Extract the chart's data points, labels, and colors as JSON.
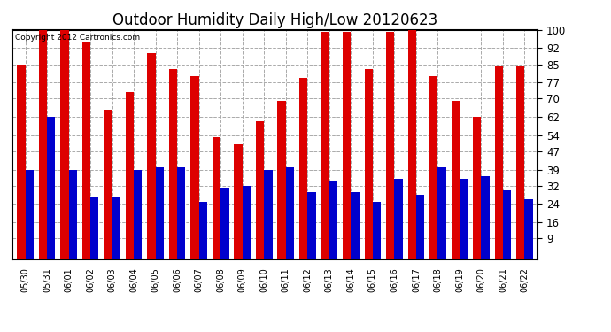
{
  "title": "Outdoor Humidity Daily High/Low 20120623",
  "copyright": "Copyright 2012 Cartronics.com",
  "dates": [
    "05/30",
    "05/31",
    "06/01",
    "06/02",
    "06/03",
    "06/04",
    "06/05",
    "06/06",
    "06/07",
    "06/08",
    "06/09",
    "06/10",
    "06/11",
    "06/12",
    "06/13",
    "06/14",
    "06/15",
    "06/16",
    "06/17",
    "06/18",
    "06/19",
    "06/20",
    "06/21",
    "06/22"
  ],
  "highs": [
    85,
    100,
    100,
    95,
    65,
    73,
    90,
    83,
    80,
    53,
    50,
    60,
    69,
    79,
    99,
    99,
    83,
    99,
    100,
    80,
    69,
    62,
    84,
    84
  ],
  "lows": [
    39,
    62,
    39,
    27,
    27,
    39,
    40,
    40,
    25,
    31,
    32,
    39,
    40,
    29,
    34,
    29,
    25,
    35,
    28,
    40,
    35,
    36,
    30,
    26
  ],
  "high_color": "#dd0000",
  "low_color": "#0000cc",
  "bg_color": "#ffffff",
  "grid_color": "#aaaaaa",
  "yticks": [
    9,
    16,
    24,
    32,
    39,
    47,
    54,
    62,
    70,
    77,
    85,
    92,
    100
  ],
  "ymin": 0,
  "ymax": 100,
  "title_fontsize": 12,
  "bar_width": 0.38
}
